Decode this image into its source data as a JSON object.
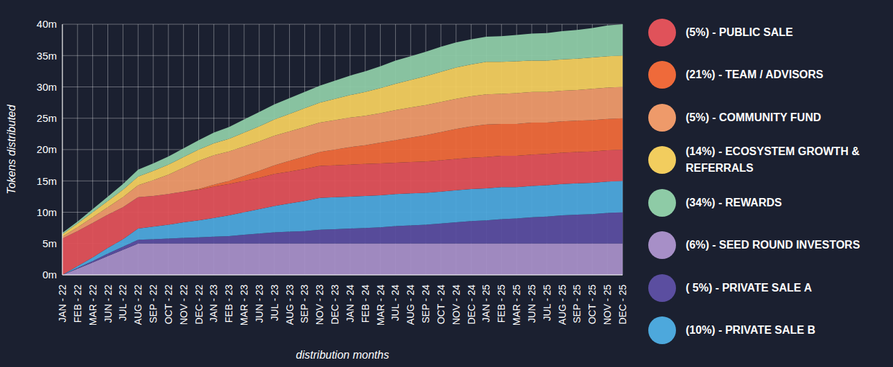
{
  "chart_data": {
    "type": "area",
    "stacked": true,
    "grid": true,
    "legend": "right",
    "x_label": "distribution months",
    "y_label": "Tokens distributed",
    "categories": [
      "JAN - 22",
      "FEB - 22",
      "MAR - 22",
      "JUN - 22",
      "JUL - 22",
      "AUG - 22",
      "SEP - 22",
      "OCT - 22",
      "NOV - 22",
      "DEC - 22",
      "JAN - 23",
      "FEB - 23",
      "MAR - 23",
      "JUN - 23",
      "JUL - 23",
      "AUG - 23",
      "SEP - 23",
      "NOV - 23",
      "DEC - 23",
      "JAN - 24",
      "FEB - 24",
      "MAR - 24",
      "JUL - 24",
      "AUG - 24",
      "SEP - 24",
      "OCT - 24",
      "NOV - 24",
      "DEC - 24",
      "JAN - 25",
      "FEB - 25",
      "MAR - 25",
      "JUN - 25",
      "JUL - 25",
      "AUG - 25",
      "SEP - 25",
      "OCT - 25",
      "NOV - 25",
      "DEC - 25"
    ],
    "ylim": [
      0,
      40
    ],
    "yticks": [
      {
        "value": 0,
        "label": "0m"
      },
      {
        "value": 5,
        "label": "5m"
      },
      {
        "value": 10,
        "label": "10m"
      },
      {
        "value": 15,
        "label": "15m"
      },
      {
        "value": 20,
        "label": "20m"
      },
      {
        "value": 25,
        "label": "25m"
      },
      {
        "value": 30,
        "label": "30m"
      },
      {
        "value": 35,
        "label": "35m"
      },
      {
        "value": 40,
        "label": "40m"
      }
    ],
    "series": [
      {
        "name": "(5%) - PUBLIC SALE",
        "color": "#e0525a",
        "values": [
          5.8,
          5.6,
          5.5,
          5.3,
          5.1,
          5.0,
          4.9,
          4.9,
          4.9,
          4.9,
          5.0,
          5.0,
          5.0,
          5.0,
          5.1,
          5.1,
          5.1,
          5.1,
          5.1,
          5.1,
          5.1,
          5.1,
          5.0,
          5.0,
          5.0,
          5.0,
          5.0,
          5.0,
          5.0,
          5.0,
          5.0,
          5.0,
          5.0,
          5.0,
          5.0,
          5.0,
          5.0,
          5.0
        ]
      },
      {
        "name": "(21%) - TEAM / ADVISORS",
        "color": "#ef6a3a",
        "values": [
          0,
          0,
          0,
          0,
          0,
          0,
          0,
          0,
          0,
          0.1,
          0.3,
          0.5,
          0.8,
          1.1,
          1.4,
          1.7,
          2.0,
          2.2,
          2.5,
          2.8,
          3.0,
          3.3,
          3.6,
          3.9,
          4.2,
          4.5,
          4.8,
          5.0,
          5.2,
          5.1,
          5.1,
          5.1,
          5.0,
          5.0,
          5.0,
          5.0,
          5.0,
          5.0
        ]
      },
      {
        "name": "(5%) - COMMUNITY FUND",
        "color": "#ee9a6a",
        "values": [
          0.3,
          0.6,
          0.9,
          1.2,
          1.6,
          1.9,
          2.5,
          3.1,
          3.8,
          4.5,
          4.7,
          4.7,
          4.7,
          4.7,
          4.7,
          4.7,
          4.7,
          4.7,
          4.7,
          4.7,
          4.7,
          4.7,
          4.8,
          4.8,
          4.8,
          4.8,
          4.8,
          4.8,
          4.8,
          4.8,
          4.9,
          4.9,
          4.9,
          4.9,
          4.9,
          5.0,
          5.0,
          5.0
        ]
      },
      {
        "name": "(14%) - ECOSYSTEM GROWTH & REFERRALS",
        "color": "#f2cd5e",
        "values": [
          0.4,
          0.6,
          0.8,
          1.0,
          1.2,
          1.4,
          1.5,
          1.6,
          1.7,
          1.8,
          1.9,
          2.0,
          2.2,
          2.4,
          2.6,
          2.8,
          3.0,
          3.2,
          3.4,
          3.6,
          3.8,
          4.0,
          4.2,
          4.4,
          4.6,
          4.8,
          5.0,
          5.1,
          5.2,
          5.1,
          5.1,
          5.0,
          5.0,
          5.0,
          5.0,
          5.0,
          5.0,
          5.0
        ]
      },
      {
        "name": "(34%) - REWARDS",
        "color": "#8ecba6",
        "values": [
          0.2,
          0.3,
          0.5,
          0.7,
          0.9,
          1.1,
          1.2,
          1.3,
          1.4,
          1.5,
          1.7,
          1.9,
          2.1,
          2.3,
          2.4,
          2.5,
          2.6,
          2.7,
          2.9,
          3.1,
          3.3,
          3.5,
          3.7,
          3.8,
          3.9,
          4.0,
          4.0,
          4.0,
          4.0,
          4.1,
          4.2,
          4.3,
          4.4,
          4.5,
          4.6,
          4.7,
          4.9,
          5.0
        ]
      },
      {
        "name": "(6%) - SEED ROUND INVESTORS",
        "color": "#a78fc7",
        "values": [
          0,
          1,
          2,
          3,
          4,
          5,
          5,
          5,
          5,
          5,
          5,
          5,
          5,
          5,
          5,
          5,
          5,
          5,
          5,
          5,
          5,
          5,
          5,
          5,
          5,
          5,
          5,
          5,
          5,
          5,
          5,
          5,
          5,
          5,
          5,
          5,
          5,
          5
        ]
      },
      {
        "name": "( 5%) - PRIVATE SALE A",
        "color": "#5b4ea0",
        "values": [
          0,
          0.1,
          0.2,
          0.4,
          0.5,
          0.6,
          0.7,
          0.8,
          0.9,
          1.0,
          1.1,
          1.2,
          1.4,
          1.6,
          1.8,
          1.9,
          2.0,
          2.2,
          2.3,
          2.4,
          2.5,
          2.6,
          2.8,
          2.9,
          3.0,
          3.2,
          3.4,
          3.6,
          3.7,
          3.9,
          4.0,
          4.2,
          4.3,
          4.5,
          4.6,
          4.7,
          4.9,
          5.0
        ]
      },
      {
        "name": "(10%) - PRIVATE SALE B",
        "color": "#4da8dc",
        "values": [
          0,
          0.3,
          0.6,
          0.9,
          1.2,
          1.8,
          2.0,
          2.2,
          2.5,
          2.7,
          3.0,
          3.3,
          3.6,
          3.9,
          4.2,
          4.5,
          4.8,
          5.1,
          5.1,
          5.1,
          5.1,
          5.1,
          5.1,
          5.1,
          5.1,
          5.1,
          5.1,
          5.1,
          5.1,
          5.1,
          5.0,
          5.0,
          5.0,
          5.0,
          5.0,
          5.0,
          5.0,
          5.0
        ]
      }
    ]
  }
}
